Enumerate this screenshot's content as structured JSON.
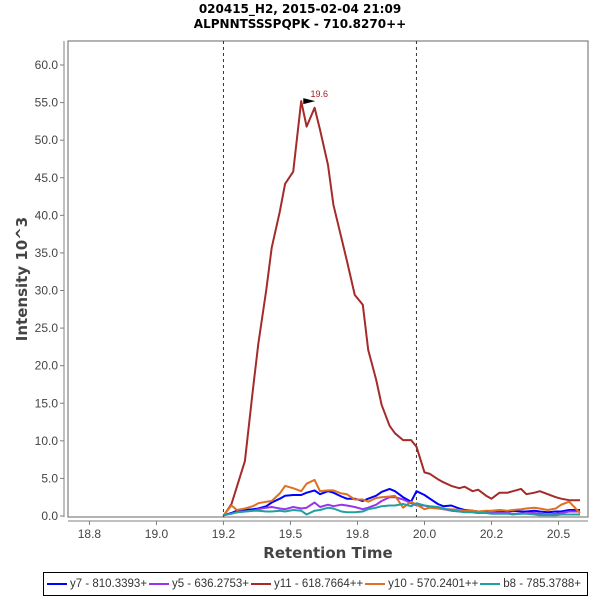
{
  "chart_data": {
    "type": "line",
    "title": "020415_H2, 2015-02-04 21:09",
    "subtitle": "ALPNNTSSSPQPK - 710.8270++",
    "xlabel": "Retention Time",
    "ylabel": "Intensity 10^3",
    "xlim": [
      18.67,
      20.61
    ],
    "ylim": [
      0,
      63.2
    ],
    "x_ticks": [
      18.75,
      19.0,
      19.25,
      19.5,
      19.75,
      20.0,
      20.25,
      20.5
    ],
    "x_tick_labels": [
      "18.8",
      "19.0",
      "19.2",
      "19.5",
      "19.8",
      "20.0",
      "20.2",
      "20.5"
    ],
    "y_ticks": [
      0,
      5,
      10,
      15,
      20,
      25,
      30,
      35,
      40,
      45,
      50,
      55,
      60
    ],
    "y_tick_labels": [
      "0.0",
      "5.0",
      "10.0",
      "15.0",
      "20.0",
      "25.0",
      "30.0",
      "35.0",
      "40.0",
      "45.0",
      "50.0",
      "55.0",
      "60.0"
    ],
    "grid": false,
    "legend_position": "bottom",
    "integration_boundaries": [
      19.25,
      19.97
    ],
    "peak_annotation": {
      "label": "19.6",
      "x": 19.6,
      "y": 55.2
    },
    "series": [
      {
        "name": "y7 - 810.3393+",
        "color": "#0000ff",
        "x": [
          19.25,
          19.28,
          19.3,
          19.33,
          19.36,
          19.38,
          19.41,
          19.43,
          19.46,
          19.48,
          19.51,
          19.54,
          19.56,
          19.59,
          19.61,
          19.64,
          19.66,
          19.69,
          19.71,
          19.74,
          19.77,
          19.79,
          19.82,
          19.84,
          19.87,
          19.89,
          19.92,
          19.95,
          19.97,
          20.0,
          20.02,
          20.05,
          20.07,
          20.1,
          20.13,
          20.15,
          20.18,
          20.2,
          20.23,
          20.25,
          20.28,
          20.31,
          20.33,
          20.36,
          20.38,
          20.41,
          20.43,
          20.46,
          20.49,
          20.51,
          20.54,
          20.58
        ],
        "values": [
          0.1,
          0.4,
          0.7,
          0.8,
          0.9,
          1.0,
          1.3,
          1.8,
          2.3,
          2.7,
          2.8,
          2.8,
          3.1,
          3.4,
          2.9,
          3.3,
          3.1,
          2.6,
          2.3,
          2.3,
          2.0,
          2.3,
          2.7,
          3.2,
          3.6,
          3.3,
          2.5,
          1.9,
          3.3,
          2.8,
          2.3,
          1.6,
          1.3,
          1.4,
          1.0,
          0.8,
          0.7,
          0.6,
          0.6,
          0.6,
          0.7,
          0.6,
          0.7,
          0.6,
          0.6,
          0.7,
          0.6,
          0.5,
          0.6,
          0.6,
          0.8,
          0.8
        ]
      },
      {
        "name": "y5 - 636.2753+",
        "color": "#9933ee",
        "x": [
          19.25,
          19.28,
          19.3,
          19.33,
          19.36,
          19.38,
          19.41,
          19.43,
          19.46,
          19.48,
          19.51,
          19.54,
          19.56,
          19.59,
          19.61,
          19.64,
          19.66,
          19.69,
          19.71,
          19.74,
          19.77,
          19.79,
          19.82,
          19.84,
          19.87,
          19.89,
          19.92,
          19.95,
          19.97,
          20.0,
          20.02,
          20.05,
          20.07,
          20.1,
          20.13,
          20.15,
          20.18,
          20.2,
          20.23,
          20.25,
          20.28,
          20.31,
          20.33,
          20.36,
          20.38,
          20.41,
          20.43,
          20.46,
          20.49,
          20.51,
          20.54,
          20.58
        ],
        "values": [
          0.1,
          0.3,
          0.5,
          0.6,
          0.7,
          0.9,
          1.1,
          1.2,
          1.0,
          0.9,
          1.2,
          1.0,
          1.1,
          1.8,
          1.2,
          1.5,
          1.3,
          1.5,
          1.4,
          1.2,
          0.9,
          1.1,
          1.5,
          2.0,
          2.5,
          2.5,
          2.2,
          1.7,
          1.4,
          1.4,
          1.2,
          1.1,
          0.9,
          0.7,
          0.6,
          0.6,
          0.5,
          0.4,
          0.4,
          0.5,
          0.4,
          0.4,
          0.3,
          0.3,
          0.4,
          0.4,
          0.3,
          0.2,
          0.3,
          0.4,
          0.6,
          0.6
        ]
      },
      {
        "name": "y11 - 618.7664++",
        "color": "#a52a2a",
        "x": [
          19.25,
          19.28,
          19.3,
          19.33,
          19.36,
          19.38,
          19.41,
          19.43,
          19.46,
          19.48,
          19.51,
          19.54,
          19.56,
          19.59,
          19.61,
          19.64,
          19.66,
          19.69,
          19.71,
          19.74,
          19.77,
          19.79,
          19.82,
          19.84,
          19.87,
          19.89,
          19.92,
          19.95,
          19.97,
          20.0,
          20.02,
          20.05,
          20.07,
          20.1,
          20.13,
          20.15,
          20.18,
          20.2,
          20.23,
          20.25,
          20.28,
          20.31,
          20.33,
          20.36,
          20.38,
          20.41,
          20.43,
          20.46,
          20.49,
          20.51,
          20.54,
          20.58
        ],
        "values": [
          0.0,
          1.6,
          3.9,
          7.3,
          16.8,
          22.9,
          30.2,
          35.7,
          40.5,
          44.2,
          45.8,
          55.2,
          51.8,
          54.3,
          51.4,
          46.7,
          41.4,
          37.0,
          34.0,
          29.4,
          28.1,
          22.1,
          18.1,
          14.8,
          12.0,
          11.0,
          10.1,
          10.1,
          9.2,
          5.8,
          5.6,
          4.9,
          4.5,
          4.0,
          3.7,
          3.9,
          3.3,
          3.5,
          2.7,
          2.3,
          3.1,
          3.1,
          3.3,
          3.6,
          2.9,
          3.1,
          3.3,
          2.9,
          2.5,
          2.3,
          2.1,
          2.1
        ]
      },
      {
        "name": "y10 - 570.2401++",
        "color": "#e07020",
        "x": [
          19.25,
          19.28,
          19.3,
          19.33,
          19.36,
          19.38,
          19.41,
          19.43,
          19.46,
          19.48,
          19.51,
          19.54,
          19.56,
          19.59,
          19.61,
          19.64,
          19.66,
          19.69,
          19.71,
          19.74,
          19.77,
          19.79,
          19.82,
          19.84,
          19.87,
          19.89,
          19.92,
          19.95,
          19.97,
          20.0,
          20.02,
          20.05,
          20.07,
          20.1,
          20.13,
          20.15,
          20.18,
          20.2,
          20.23,
          20.25,
          20.28,
          20.31,
          20.33,
          20.36,
          20.38,
          20.41,
          20.43,
          20.46,
          20.49,
          20.51,
          20.54,
          20.58
        ],
        "values": [
          0.1,
          1.4,
          0.8,
          1.0,
          1.3,
          1.7,
          1.9,
          2.0,
          3.0,
          4.0,
          3.7,
          3.3,
          4.3,
          4.8,
          3.3,
          3.4,
          3.4,
          3.0,
          2.9,
          2.2,
          2.2,
          1.9,
          2.4,
          2.5,
          2.6,
          2.7,
          1.1,
          1.9,
          1.5,
          0.9,
          1.1,
          1.0,
          0.9,
          0.9,
          0.8,
          0.7,
          0.7,
          0.6,
          0.7,
          0.7,
          0.8,
          0.7,
          0.8,
          0.9,
          1.0,
          1.1,
          1.0,
          0.8,
          1.0,
          1.5,
          1.9,
          0.4
        ]
      },
      {
        "name": "b8 - 785.3788+",
        "color": "#20a0a0",
        "x": [
          19.25,
          19.28,
          19.3,
          19.33,
          19.36,
          19.38,
          19.41,
          19.43,
          19.46,
          19.48,
          19.51,
          19.54,
          19.56,
          19.59,
          19.61,
          19.64,
          19.66,
          19.69,
          19.71,
          19.74,
          19.77,
          19.79,
          19.82,
          19.84,
          19.87,
          19.89,
          19.92,
          19.95,
          19.97,
          20.0,
          20.02,
          20.05,
          20.07,
          20.1,
          20.13,
          20.15,
          20.18,
          20.2,
          20.23,
          20.25,
          20.28,
          20.31,
          20.33,
          20.36,
          20.38,
          20.41,
          20.43,
          20.46,
          20.49,
          20.51,
          20.54,
          20.58
        ],
        "values": [
          0.1,
          0.3,
          0.5,
          0.6,
          0.7,
          0.7,
          0.6,
          0.6,
          0.7,
          0.6,
          0.8,
          0.7,
          0.2,
          0.7,
          0.8,
          1.1,
          1.0,
          0.6,
          0.5,
          0.5,
          0.6,
          0.9,
          1.1,
          1.3,
          1.4,
          1.4,
          1.6,
          1.3,
          1.7,
          1.4,
          1.3,
          1.2,
          1.0,
          0.8,
          0.6,
          0.5,
          0.5,
          0.4,
          0.4,
          0.3,
          0.3,
          0.3,
          0.2,
          0.3,
          0.3,
          0.2,
          0.1,
          0.1,
          0.1,
          0.2,
          0.2,
          0.2
        ]
      }
    ]
  }
}
